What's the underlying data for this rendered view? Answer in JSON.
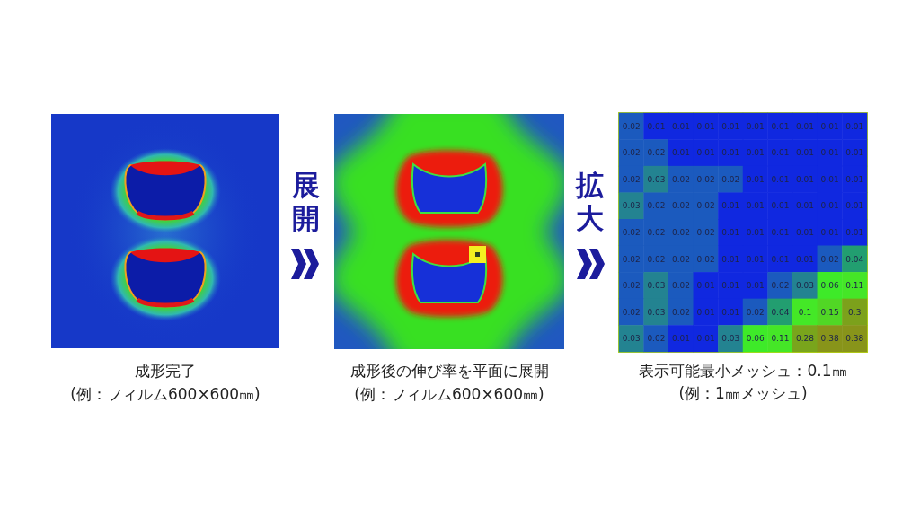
{
  "chart_data": {
    "type": "heatmap",
    "title": "表示可能最小メッシュ：0.1㎜",
    "subtitle": "(例：1㎜メッシュ)",
    "annotations": [
      "成形完了",
      "(例：フィルム600×600㎜)",
      "展開",
      "成形後の伸び率を平面に展開",
      "(例：フィルム600×600㎜)",
      "拡大"
    ],
    "categories": [
      null,
      null,
      null,
      null,
      null,
      null,
      null,
      null,
      null,
      null
    ],
    "y_categories": [
      null,
      null,
      null,
      null,
      null,
      null,
      null,
      null,
      null
    ],
    "cells": [
      [
        0.02,
        0.01,
        0.01,
        0.01,
        0.01,
        0.01,
        0.01,
        0.01,
        0.01,
        0.01
      ],
      [
        0.02,
        0.02,
        0.01,
        0.01,
        0.01,
        0.01,
        0.01,
        0.01,
        0.01,
        0.01
      ],
      [
        0.02,
        0.03,
        0.02,
        0.02,
        0.02,
        0.01,
        0.01,
        0.01,
        0.01,
        0.01
      ],
      [
        0.03,
        0.02,
        0.02,
        0.02,
        0.01,
        0.01,
        0.01,
        0.01,
        0.01,
        0.01
      ],
      [
        0.02,
        0.02,
        0.02,
        0.02,
        0.01,
        0.01,
        0.01,
        0.01,
        0.01,
        0.01
      ],
      [
        0.02,
        0.02,
        0.02,
        0.02,
        0.01,
        0.01,
        0.01,
        0.01,
        0.02,
        0.04
      ],
      [
        0.02,
        0.03,
        0.02,
        0.01,
        0.01,
        0.01,
        0.02,
        0.03,
        0.06,
        0.11
      ],
      [
        0.02,
        0.03,
        0.02,
        0.01,
        0.01,
        0.02,
        0.04,
        0.1,
        0.15,
        0.3
      ],
      [
        0.03,
        0.02,
        0.01,
        0.01,
        0.03,
        0.06,
        0.11,
        0.28,
        0.38,
        0.38
      ]
    ],
    "data_labels": true
  }
}
